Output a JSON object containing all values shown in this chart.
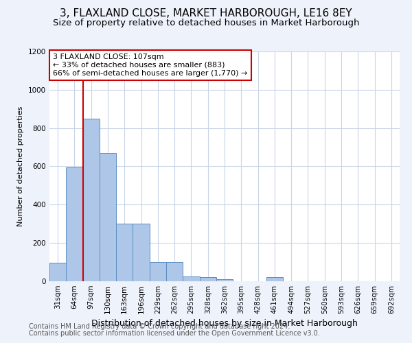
{
  "title": "3, FLAXLAND CLOSE, MARKET HARBOROUGH, LE16 8EY",
  "subtitle": "Size of property relative to detached houses in Market Harborough",
  "xlabel": "Distribution of detached houses by size in Market Harborough",
  "ylabel": "Number of detached properties",
  "bins": [
    "31sqm",
    "64sqm",
    "97sqm",
    "130sqm",
    "163sqm",
    "196sqm",
    "229sqm",
    "262sqm",
    "295sqm",
    "328sqm",
    "362sqm",
    "395sqm",
    "428sqm",
    "461sqm",
    "494sqm",
    "527sqm",
    "560sqm",
    "593sqm",
    "626sqm",
    "659sqm",
    "692sqm"
  ],
  "values": [
    95,
    595,
    850,
    670,
    300,
    300,
    100,
    100,
    25,
    20,
    10,
    0,
    0,
    20,
    0,
    0,
    0,
    0,
    0,
    0,
    0
  ],
  "bar_color": "#aec6e8",
  "bar_edge_color": "#5a8fc2",
  "vline_color": "#cc0000",
  "annotation_text": "3 FLAXLAND CLOSE: 107sqm\n← 33% of detached houses are smaller (883)\n66% of semi-detached houses are larger (1,770) →",
  "annotation_box_color": "white",
  "annotation_box_edge": "#cc0000",
  "ylim": [
    0,
    1200
  ],
  "yticks": [
    0,
    200,
    400,
    600,
    800,
    1000,
    1200
  ],
  "footer1": "Contains HM Land Registry data © Crown copyright and database right 2024.",
  "footer2": "Contains public sector information licensed under the Open Government Licence v3.0.",
  "bg_color": "#eef2fa",
  "plot_bg_color": "#ffffff",
  "grid_color": "#c8d4e8",
  "title_fontsize": 11,
  "subtitle_fontsize": 9.5,
  "xlabel_fontsize": 9,
  "ylabel_fontsize": 8,
  "footer_fontsize": 7,
  "tick_fontsize": 7.5,
  "annotation_fontsize": 8
}
